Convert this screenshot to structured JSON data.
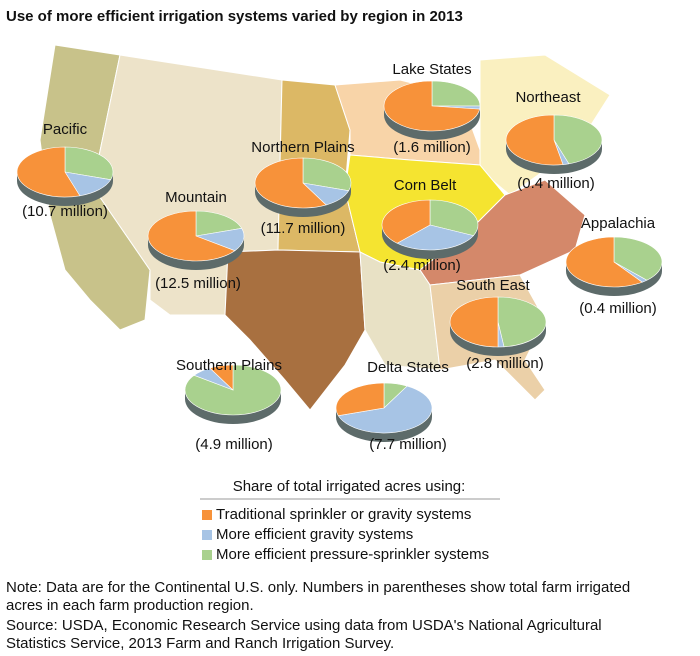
{
  "title": "Use of more efficient irrigation systems varied by region in 2013",
  "regions": [
    {
      "name": "Pacific",
      "acres": "(10.7 million)",
      "shares": [
        55,
        15,
        30
      ]
    },
    {
      "name": "Mountain",
      "acres": "(12.5 million)",
      "shares": [
        65,
        15,
        20
      ]
    },
    {
      "name": "Northern Plains",
      "acres": "(11.7 million)",
      "shares": [
        58,
        12,
        30
      ]
    },
    {
      "name": "Lake States",
      "acres": "(1.6 million)",
      "shares": [
        73,
        2,
        25
      ]
    },
    {
      "name": "Northeast",
      "acres": "(0.4 million)",
      "shares": [
        53,
        2,
        45
      ]
    },
    {
      "name": "Corn Belt",
      "acres": "(2.4 million)",
      "shares": [
        38,
        30,
        32
      ]
    },
    {
      "name": "Appalachia",
      "acres": "(0.4 million)",
      "shares": [
        60,
        2,
        38
      ]
    },
    {
      "name": "South East",
      "acres": "(2.8 million)",
      "shares": [
        50,
        2,
        48
      ]
    },
    {
      "name": "Southern Plains",
      "acres": "(4.9 million)",
      "shares": [
        8,
        7,
        85
      ]
    },
    {
      "name": "Delta States",
      "acres": "(7.7 million)",
      "shares": [
        30,
        62,
        8
      ]
    }
  ],
  "legend": {
    "title": "Share of total irrigated acres using:",
    "items": [
      {
        "label": "Traditional sprinkler or gravity systems",
        "color": "#f7923a"
      },
      {
        "label": "More efficient gravity systems",
        "color": "#a7c4e5"
      },
      {
        "label": "More efficient pressure-sprinkler systems",
        "color": "#a9d18e"
      }
    ]
  },
  "notes": [
    "Note: Data are for the Continental U.S. only. Numbers in parentheses show total farm irrigated",
    "acres in each farm production region.",
    "Source: USDA, Economic Research Service using data from USDA's National Agricultural",
    "Statistics Service, 2013 Farm and Ranch Irrigation Survey."
  ]
}
